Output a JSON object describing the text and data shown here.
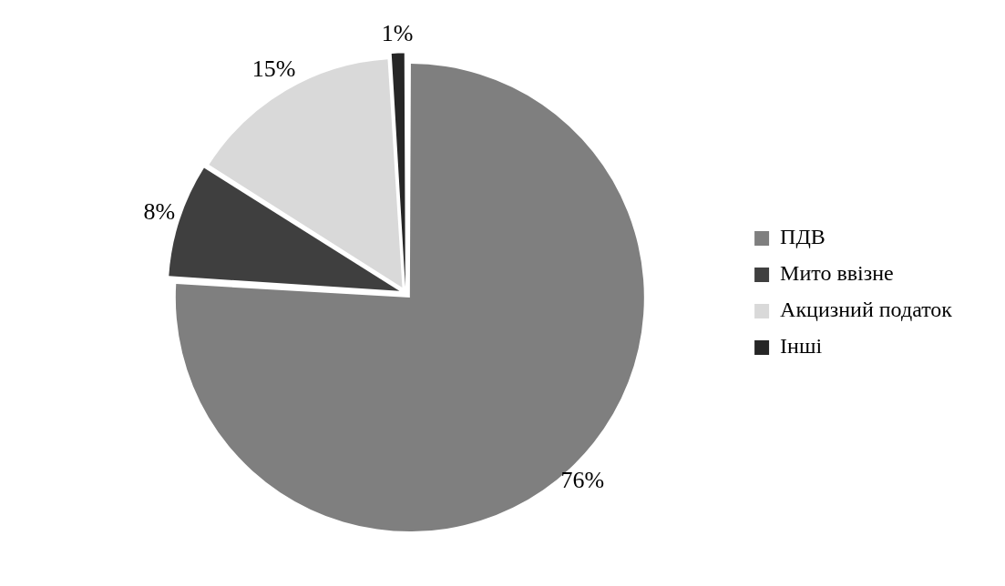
{
  "chart_data": {
    "type": "pie",
    "categories": [
      "ПДВ",
      "Мито ввізне",
      "Акцизний податок",
      "Інші"
    ],
    "values": [
      76,
      8,
      15,
      1
    ],
    "colors": [
      "#7f7f7f",
      "#3f3f3f",
      "#d9d9d9",
      "#262626"
    ],
    "value_labels": [
      "76%",
      "8%",
      "15%",
      "1%"
    ],
    "legend": "right"
  }
}
